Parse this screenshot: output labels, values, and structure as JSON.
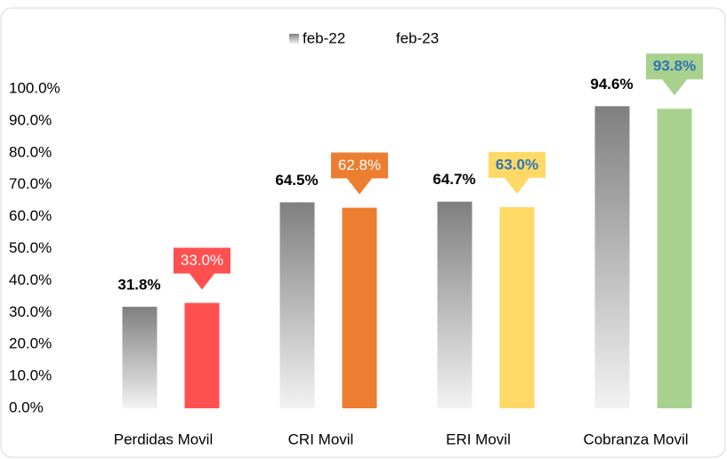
{
  "chart_data": {
    "type": "bar",
    "categories": [
      "Perdidas Movil",
      "CRI Movil",
      "ERI Movil",
      "Cobranza Movil"
    ],
    "series": [
      {
        "name": "feb-22",
        "color": "#808080",
        "values": [
          31.8,
          64.5,
          64.7,
          94.6
        ],
        "value_labels": [
          "31.8%",
          "64.5%",
          "64.7%",
          "94.6%"
        ]
      },
      {
        "name": "feb-23",
        "colors": [
          "#ff5050",
          "#ed7d31",
          "#ffd966",
          "#a9d18e"
        ],
        "label_colors": [
          "#ffffff",
          "#ffffff",
          "#2e75b6",
          "#2e75b6"
        ],
        "values": [
          33.0,
          62.8,
          63.0,
          93.8
        ],
        "value_labels": [
          "33.0%",
          "62.8%",
          "63.0%",
          "93.8%"
        ]
      }
    ],
    "ylim": [
      0,
      100
    ],
    "yticks": [
      {
        "value": 0,
        "label": "0.0%"
      },
      {
        "value": 10,
        "label": "10.0%"
      },
      {
        "value": 20,
        "label": "20.0%"
      },
      {
        "value": 30,
        "label": "30.0%"
      },
      {
        "value": 40,
        "label": "40.0%"
      },
      {
        "value": 50,
        "label": "50.0%"
      },
      {
        "value": 60,
        "label": "60.0%"
      },
      {
        "value": 70,
        "label": "70.0%"
      },
      {
        "value": 80,
        "label": "80.0%"
      },
      {
        "value": 90,
        "label": "90.0%"
      },
      {
        "value": 100,
        "label": "100.0%"
      }
    ],
    "grid": false,
    "legend": "top"
  }
}
